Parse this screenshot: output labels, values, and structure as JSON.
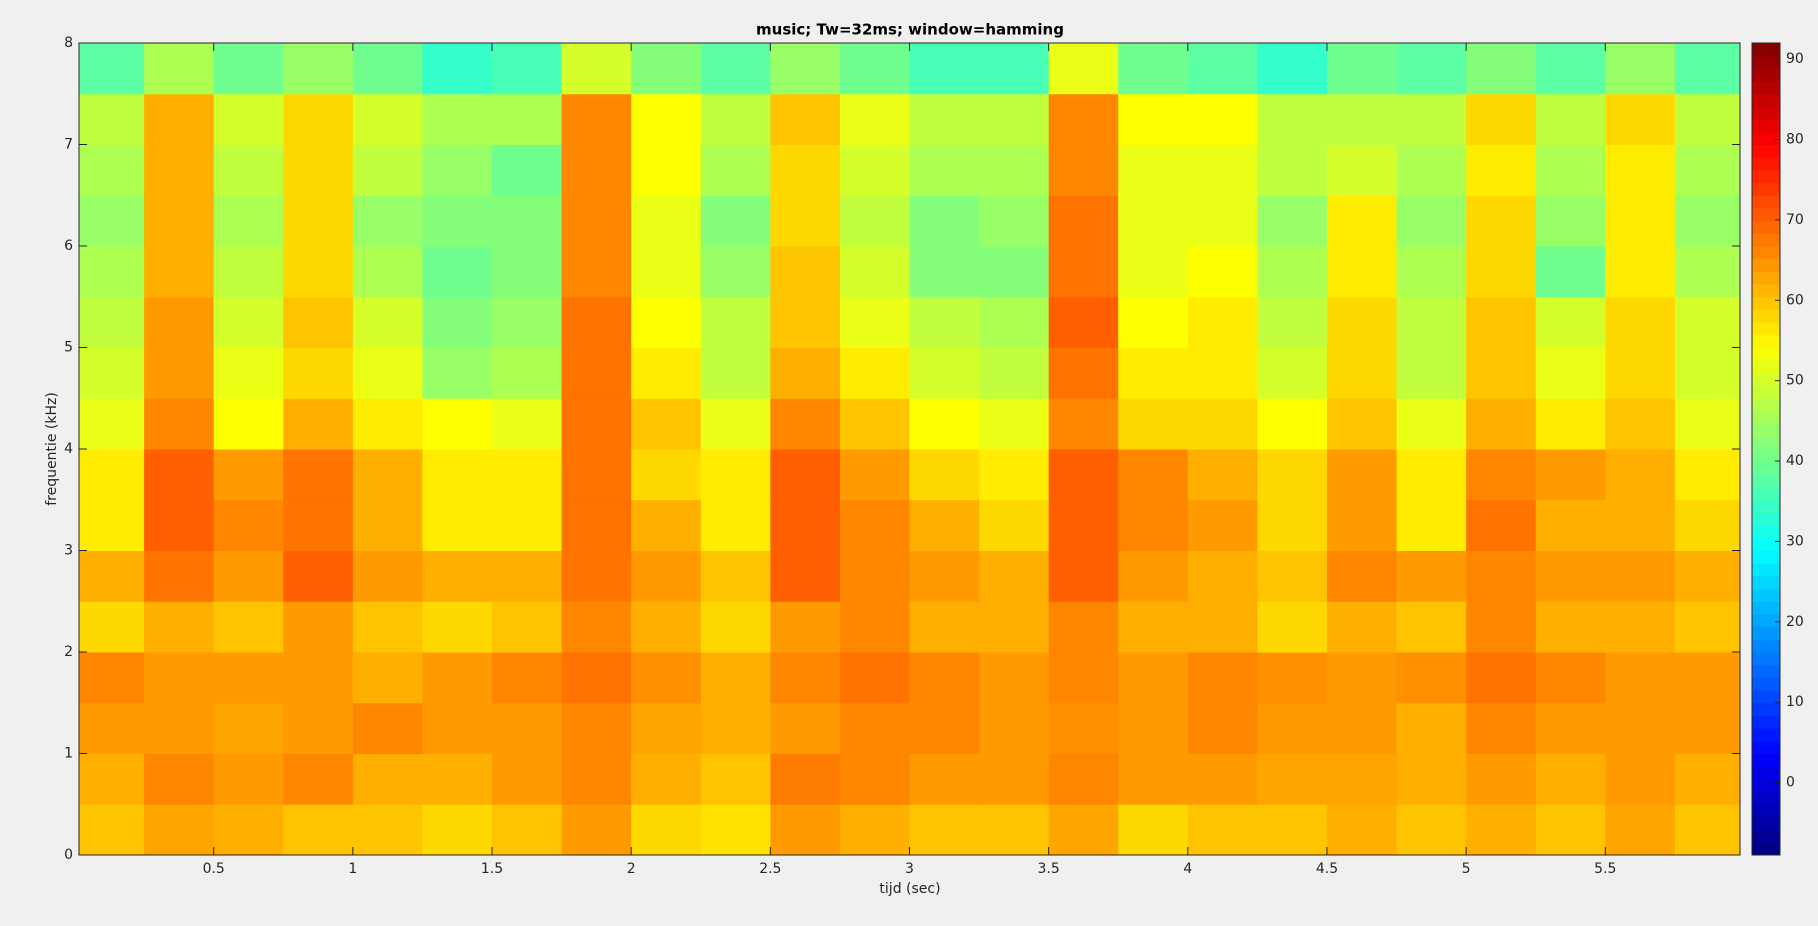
{
  "chart_data": {
    "type": "heatmap",
    "title": "music; Tw=32ms; window=hamming",
    "xlabel": "tijd (sec)",
    "ylabel": "frequentie (kHz)",
    "colormap": "jet",
    "xbins": [
      0,
      0.25,
      0.5,
      0.75,
      1,
      1.25,
      1.5,
      1.75,
      2,
      2.25,
      2.5,
      2.75,
      3,
      3.25,
      3.5,
      3.75,
      4,
      4.25,
      4.5,
      4.75,
      5,
      5.25,
      5.5,
      5.75,
      6
    ],
    "ybins": [
      0,
      0.5,
      1,
      1.5,
      2,
      2.5,
      3,
      3.5,
      4,
      4.5,
      5,
      5.5,
      6,
      6.5,
      7,
      7.5,
      8
    ],
    "z": [
      [
        60,
        63,
        62,
        60,
        60,
        58,
        60,
        64,
        58,
        57,
        64,
        62,
        60,
        60,
        63,
        58,
        60,
        60,
        62,
        60,
        62,
        60,
        63,
        60
      ],
      [
        62,
        66,
        64,
        66,
        62,
        62,
        64,
        66,
        62,
        60,
        67,
        66,
        64,
        64,
        66,
        64,
        64,
        63,
        63,
        62,
        64,
        62,
        64,
        62
      ],
      [
        64,
        64,
        63,
        64,
        66,
        64,
        64,
        66,
        63,
        62,
        64,
        66,
        66,
        64,
        65,
        64,
        66,
        64,
        64,
        62,
        66,
        64,
        64,
        64
      ],
      [
        66,
        64,
        64,
        64,
        62,
        64,
        66,
        68,
        65,
        62,
        66,
        68,
        66,
        64,
        66,
        64,
        66,
        65,
        64,
        65,
        68,
        66,
        64,
        64
      ],
      [
        58,
        62,
        60,
        64,
        60,
        58,
        60,
        66,
        62,
        58,
        64,
        66,
        62,
        62,
        66,
        62,
        62,
        58,
        62,
        60,
        66,
        62,
        62,
        60
      ],
      [
        62,
        68,
        64,
        70,
        64,
        62,
        62,
        68,
        64,
        60,
        70,
        66,
        64,
        62,
        70,
        64,
        62,
        60,
        66,
        64,
        66,
        64,
        64,
        62
      ],
      [
        56,
        70,
        66,
        68,
        62,
        56,
        56,
        68,
        62,
        56,
        70,
        66,
        62,
        58,
        70,
        66,
        64,
        58,
        64,
        56,
        68,
        62,
        62,
        58
      ],
      [
        56,
        70,
        64,
        68,
        62,
        56,
        56,
        68,
        58,
        56,
        70,
        64,
        58,
        56,
        70,
        66,
        62,
        58,
        64,
        56,
        66,
        64,
        62,
        56
      ],
      [
        52,
        66,
        54,
        62,
        56,
        54,
        52,
        68,
        60,
        52,
        66,
        60,
        54,
        52,
        66,
        58,
        58,
        54,
        60,
        52,
        62,
        56,
        60,
        52
      ],
      [
        50,
        64,
        52,
        58,
        52,
        44,
        46,
        68,
        56,
        48,
        62,
        56,
        50,
        48,
        68,
        56,
        56,
        50,
        58,
        48,
        60,
        52,
        58,
        50
      ],
      [
        48,
        64,
        50,
        60,
        50,
        42,
        44,
        68,
        54,
        48,
        60,
        52,
        48,
        46,
        70,
        54,
        56,
        48,
        58,
        48,
        60,
        50,
        58,
        50
      ],
      [
        46,
        62,
        48,
        58,
        46,
        40,
        42,
        66,
        52,
        44,
        60,
        50,
        42,
        42,
        68,
        52,
        54,
        46,
        56,
        46,
        58,
        40,
        56,
        46
      ],
      [
        44,
        62,
        46,
        58,
        44,
        42,
        42,
        66,
        52,
        42,
        58,
        48,
        42,
        44,
        68,
        52,
        52,
        44,
        56,
        44,
        58,
        44,
        56,
        44
      ],
      [
        46,
        62,
        48,
        58,
        48,
        44,
        40,
        66,
        54,
        46,
        58,
        50,
        46,
        46,
        66,
        52,
        52,
        48,
        50,
        46,
        56,
        46,
        56,
        46
      ],
      [
        48,
        62,
        50,
        58,
        50,
        46,
        46,
        66,
        54,
        48,
        60,
        52,
        48,
        48,
        66,
        54,
        54,
        48,
        48,
        48,
        58,
        48,
        58,
        48
      ],
      [
        38,
        46,
        40,
        44,
        40,
        34,
        36,
        50,
        42,
        38,
        44,
        40,
        36,
        36,
        52,
        40,
        38,
        34,
        40,
        38,
        42,
        38,
        44,
        38
      ]
    ],
    "xlim": [
      0.016,
      5.984
    ],
    "xticks": [
      0.5,
      1,
      1.5,
      2,
      2.5,
      3,
      3.5,
      4,
      4.5,
      5,
      5.5
    ],
    "ylim": [
      0,
      8
    ],
    "yticks": [
      0,
      1,
      2,
      3,
      4,
      5,
      6,
      7,
      8
    ],
    "clim": [
      -9,
      92
    ],
    "cticks": [
      0,
      10,
      20,
      30,
      40,
      50,
      60,
      70,
      80,
      90
    ]
  }
}
